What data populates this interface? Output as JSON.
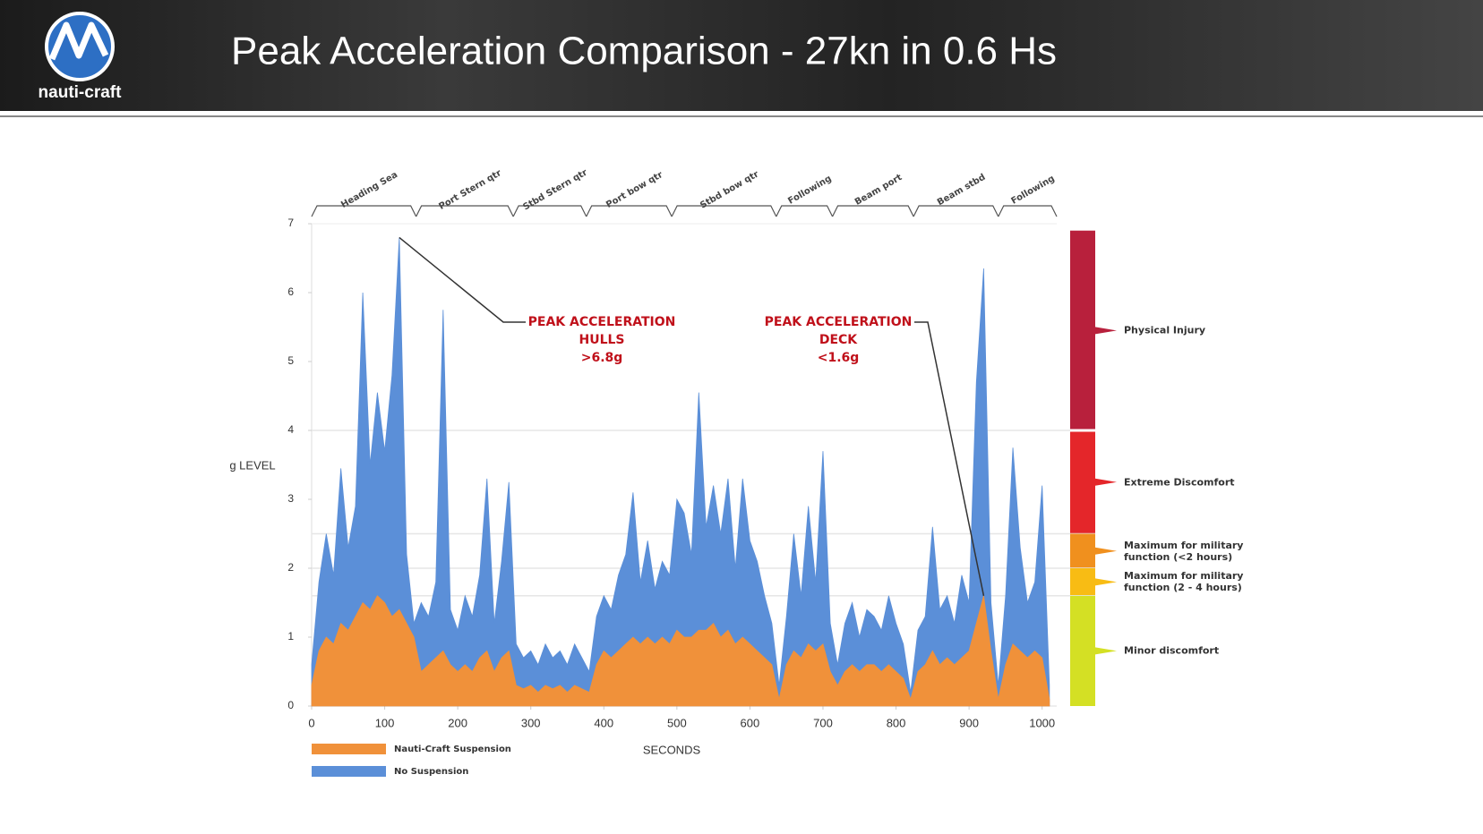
{
  "header": {
    "logo_text": "nauti-craft",
    "title": "Peak Acceleration Comparison - 27kn in 0.6 Hs"
  },
  "chart_data": {
    "type": "area",
    "xlabel": "SECONDS",
    "ylabel": "g LEVEL",
    "xlim": [
      0,
      1020
    ],
    "xticks": [
      0,
      100,
      200,
      300,
      400,
      500,
      600,
      700,
      800,
      900,
      1000
    ],
    "ylim": [
      0,
      7
    ],
    "yticks": [
      0,
      1,
      2,
      3,
      4,
      5,
      6,
      7
    ],
    "x": [
      0,
      10,
      20,
      30,
      40,
      50,
      60,
      70,
      80,
      90,
      100,
      110,
      120,
      130,
      140,
      150,
      160,
      170,
      180,
      190,
      200,
      210,
      220,
      230,
      240,
      250,
      260,
      270,
      280,
      290,
      300,
      310,
      320,
      330,
      340,
      350,
      360,
      370,
      380,
      390,
      400,
      410,
      420,
      430,
      440,
      450,
      460,
      470,
      480,
      490,
      500,
      510,
      520,
      530,
      540,
      550,
      560,
      570,
      580,
      590,
      600,
      610,
      620,
      630,
      640,
      650,
      660,
      670,
      680,
      690,
      700,
      710,
      720,
      730,
      740,
      750,
      760,
      770,
      780,
      790,
      800,
      810,
      820,
      830,
      840,
      850,
      860,
      870,
      880,
      890,
      900,
      910,
      920,
      930,
      940,
      950,
      960,
      970,
      980,
      990,
      1000,
      1010
    ],
    "series": [
      {
        "name": "Nauti-Craft Suspension",
        "color": "#f0913a",
        "values": [
          0.3,
          0.8,
          1.0,
          0.9,
          1.2,
          1.1,
          1.3,
          1.5,
          1.4,
          1.6,
          1.5,
          1.3,
          1.4,
          1.2,
          1.0,
          0.5,
          0.6,
          0.7,
          0.8,
          0.6,
          0.5,
          0.6,
          0.5,
          0.7,
          0.8,
          0.5,
          0.7,
          0.8,
          0.3,
          0.25,
          0.3,
          0.2,
          0.3,
          0.25,
          0.3,
          0.2,
          0.3,
          0.25,
          0.2,
          0.6,
          0.8,
          0.7,
          0.8,
          0.9,
          1.0,
          0.9,
          1.0,
          0.9,
          1.0,
          0.9,
          1.1,
          1.0,
          1.0,
          1.1,
          1.1,
          1.2,
          1.0,
          1.1,
          0.9,
          1.0,
          0.9,
          0.8,
          0.7,
          0.6,
          0.1,
          0.6,
          0.8,
          0.7,
          0.9,
          0.8,
          0.9,
          0.5,
          0.3,
          0.5,
          0.6,
          0.5,
          0.6,
          0.6,
          0.5,
          0.6,
          0.5,
          0.4,
          0.1,
          0.5,
          0.6,
          0.8,
          0.6,
          0.7,
          0.6,
          0.7,
          0.8,
          1.2,
          1.6,
          0.8,
          0.1,
          0.6,
          0.9,
          0.8,
          0.7,
          0.8,
          0.7,
          0.1
        ]
      },
      {
        "name": "No Suspension",
        "color": "#5b8fd8",
        "values": [
          0.6,
          1.8,
          2.5,
          1.9,
          3.45,
          2.3,
          2.9,
          6.0,
          3.5,
          4.55,
          3.7,
          4.8,
          6.8,
          2.2,
          1.2,
          1.5,
          1.3,
          1.8,
          5.75,
          1.4,
          1.1,
          1.6,
          1.3,
          1.9,
          3.3,
          1.2,
          2.1,
          3.25,
          0.9,
          0.7,
          0.8,
          0.6,
          0.9,
          0.7,
          0.8,
          0.6,
          0.9,
          0.7,
          0.5,
          1.3,
          1.6,
          1.4,
          1.9,
          2.2,
          3.1,
          1.8,
          2.4,
          1.7,
          2.1,
          1.9,
          3.0,
          2.8,
          2.2,
          4.55,
          2.6,
          3.2,
          2.5,
          3.3,
          2.0,
          3.3,
          2.4,
          2.1,
          1.6,
          1.2,
          0.3,
          1.3,
          2.5,
          1.6,
          2.9,
          1.8,
          3.7,
          1.2,
          0.6,
          1.2,
          1.5,
          1.0,
          1.4,
          1.3,
          1.1,
          1.6,
          1.2,
          0.9,
          0.2,
          1.1,
          1.3,
          2.6,
          1.4,
          1.6,
          1.2,
          1.9,
          1.5,
          4.7,
          6.35,
          1.5,
          0.3,
          1.6,
          3.75,
          2.3,
          1.5,
          1.8,
          3.2,
          0.3
        ]
      }
    ],
    "segments": [
      {
        "label": "Heading Sea",
        "start": 0,
        "end": 143
      },
      {
        "label": "Port Stern qtr",
        "start": 143,
        "end": 276
      },
      {
        "label": "Stbd Stern qtr",
        "start": 276,
        "end": 376
      },
      {
        "label": "Port bow qtr",
        "start": 376,
        "end": 493
      },
      {
        "label": "Stbd bow qtr",
        "start": 493,
        "end": 636
      },
      {
        "label": "Following",
        "start": 636,
        "end": 713
      },
      {
        "label": "Beam port",
        "start": 713,
        "end": 824
      },
      {
        "label": "Beam stbd",
        "start": 824,
        "end": 940
      },
      {
        "label": "Following",
        "start": 940,
        "end": 1020
      }
    ],
    "zones": [
      {
        "label": "Physical Injury",
        "from": 4,
        "to": 6.9,
        "color": "#b8203c"
      },
      {
        "label": "Extreme Discomfort",
        "from": 2.5,
        "to": 4,
        "color": "#e4262a"
      },
      {
        "label": "Maximum for military function (<2 hours)",
        "from": 2.0,
        "to": 2.5,
        "color": "#f0901e"
      },
      {
        "label": "Maximum for military function (2 - 4 hours)",
        "from": 1.6,
        "to": 2.0,
        "color": "#f8bc14"
      },
      {
        "label": "Minor discomfort",
        "from": 0,
        "to": 1.6,
        "color": "#d4e024"
      }
    ],
    "annotations": [
      {
        "lines": [
          "PEAK ACCELERATION",
          "HULLS",
          ">6.8g"
        ],
        "x": 120,
        "y": 6.8,
        "color": "#c0101a"
      },
      {
        "lines": [
          "PEAK ACCELERATION",
          "DECK",
          "<1.6g"
        ],
        "x": 920,
        "y": 1.6,
        "color": "#c0101a"
      }
    ]
  }
}
